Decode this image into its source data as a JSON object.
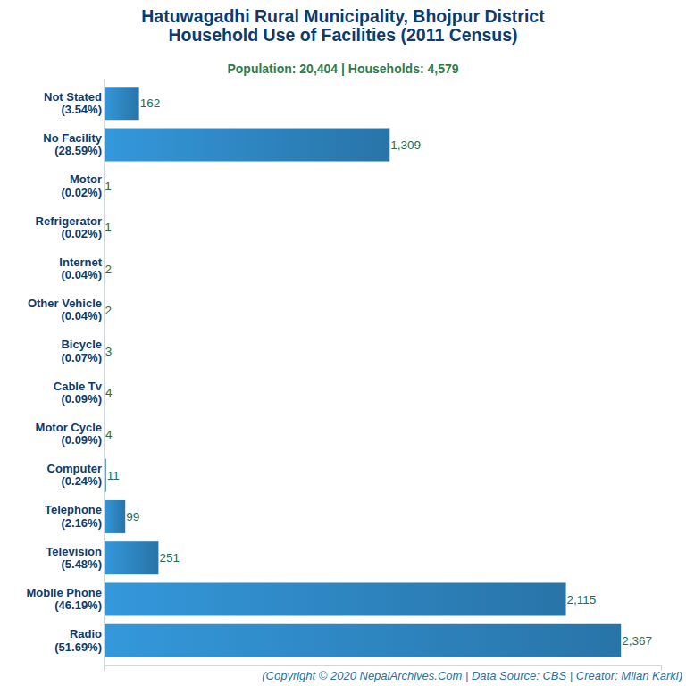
{
  "chart_data": {
    "type": "bar",
    "orientation": "horizontal",
    "title": "Hatuwagadhi Rural Municipality, Bhojpur District\nHousehold Use of Facilities (2011 Census)",
    "subtitle": "Population: 20,404 | Households: 4,579",
    "caption": "(Copyright © 2020 NepalArchives.Com | Data Source: CBS | Creator: Milan Karki)",
    "categories": [
      "Not Stated\n(3.54%)",
      "No Facility\n(28.59%)",
      "Motor\n(0.02%)",
      "Refrigerator\n(0.02%)",
      "Internet\n(0.04%)",
      "Other Vehicle\n(0.04%)",
      "Bicycle\n(0.07%)",
      "Cable Tv\n(0.09%)",
      "Motor Cycle\n(0.09%)",
      "Computer\n(0.24%)",
      "Telephone\n(2.16%)",
      "Television\n(5.48%)",
      "Mobile Phone\n(46.19%)",
      "Radio\n(51.69%)"
    ],
    "values": [
      162,
      1309,
      1,
      1,
      2,
      2,
      3,
      4,
      4,
      11,
      99,
      251,
      2115,
      2367
    ],
    "value_labels": [
      "162",
      "1,309",
      "1",
      "1",
      "2",
      "2",
      "3",
      "4",
      "4",
      "11",
      "99",
      "251",
      "2,115",
      "2,367"
    ],
    "data_labels": true,
    "color": "#3498db",
    "xlim": [
      0,
      2550
    ],
    "grid": false,
    "tick_labels": "y"
  }
}
